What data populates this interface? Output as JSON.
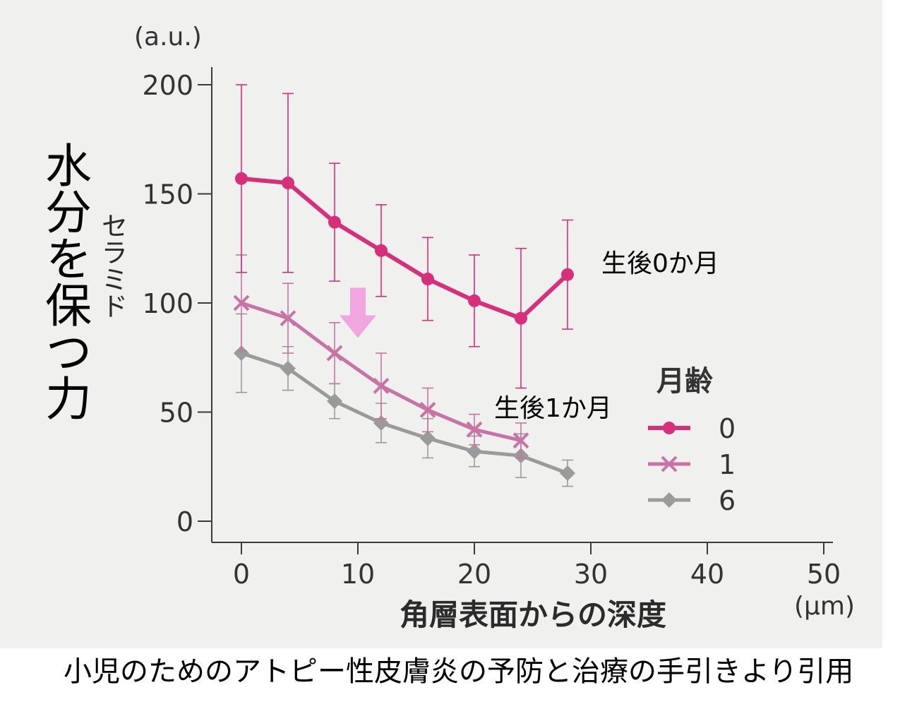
{
  "side_title": "水分を保つ力",
  "caption": "小児のためのアトピー性皮膚炎の予防と治療の手引きより引用",
  "chart_data": {
    "type": "line",
    "ylabel": "セラミド",
    "yunit": "(a.u.)",
    "xlabel": "角層表面からの深度",
    "xunit": "(μm)",
    "xlim": [
      0,
      50
    ],
    "ylim": [
      0,
      200
    ],
    "xticks": [
      0,
      10,
      20,
      30,
      40,
      50
    ],
    "yticks": [
      0,
      50,
      100,
      150,
      200
    ],
    "legend_title": "月齢",
    "legend_position": "right",
    "series": [
      {
        "name": "0",
        "marker": "circle",
        "color": "#d6307a",
        "x": [
          0,
          4,
          8,
          12,
          16,
          20,
          24,
          28
        ],
        "y": [
          157,
          155,
          137,
          124,
          111,
          101,
          93,
          113
        ],
        "err": [
          43,
          41,
          27,
          21,
          19,
          21,
          32,
          25
        ],
        "annotation": "生後0か月"
      },
      {
        "name": "1",
        "marker": "x",
        "color": "#c873a3",
        "x": [
          0,
          4,
          8,
          12,
          16,
          20,
          24
        ],
        "y": [
          100,
          93,
          77,
          62,
          51,
          42,
          37
        ],
        "err": [
          22,
          16,
          14,
          15,
          10,
          7,
          8
        ],
        "annotation": "生後1か月"
      },
      {
        "name": "6",
        "marker": "diamond",
        "color": "#9a9a9a",
        "x": [
          0,
          4,
          8,
          12,
          16,
          20,
          24,
          28
        ],
        "y": [
          77,
          70,
          55,
          45,
          38,
          32,
          30,
          22
        ],
        "err": [
          18,
          10,
          8,
          9,
          9,
          7,
          10,
          6
        ]
      }
    ],
    "arrow": {
      "x": 10,
      "y_from": 107,
      "y_to": 84,
      "color": "#f2a6df"
    }
  }
}
